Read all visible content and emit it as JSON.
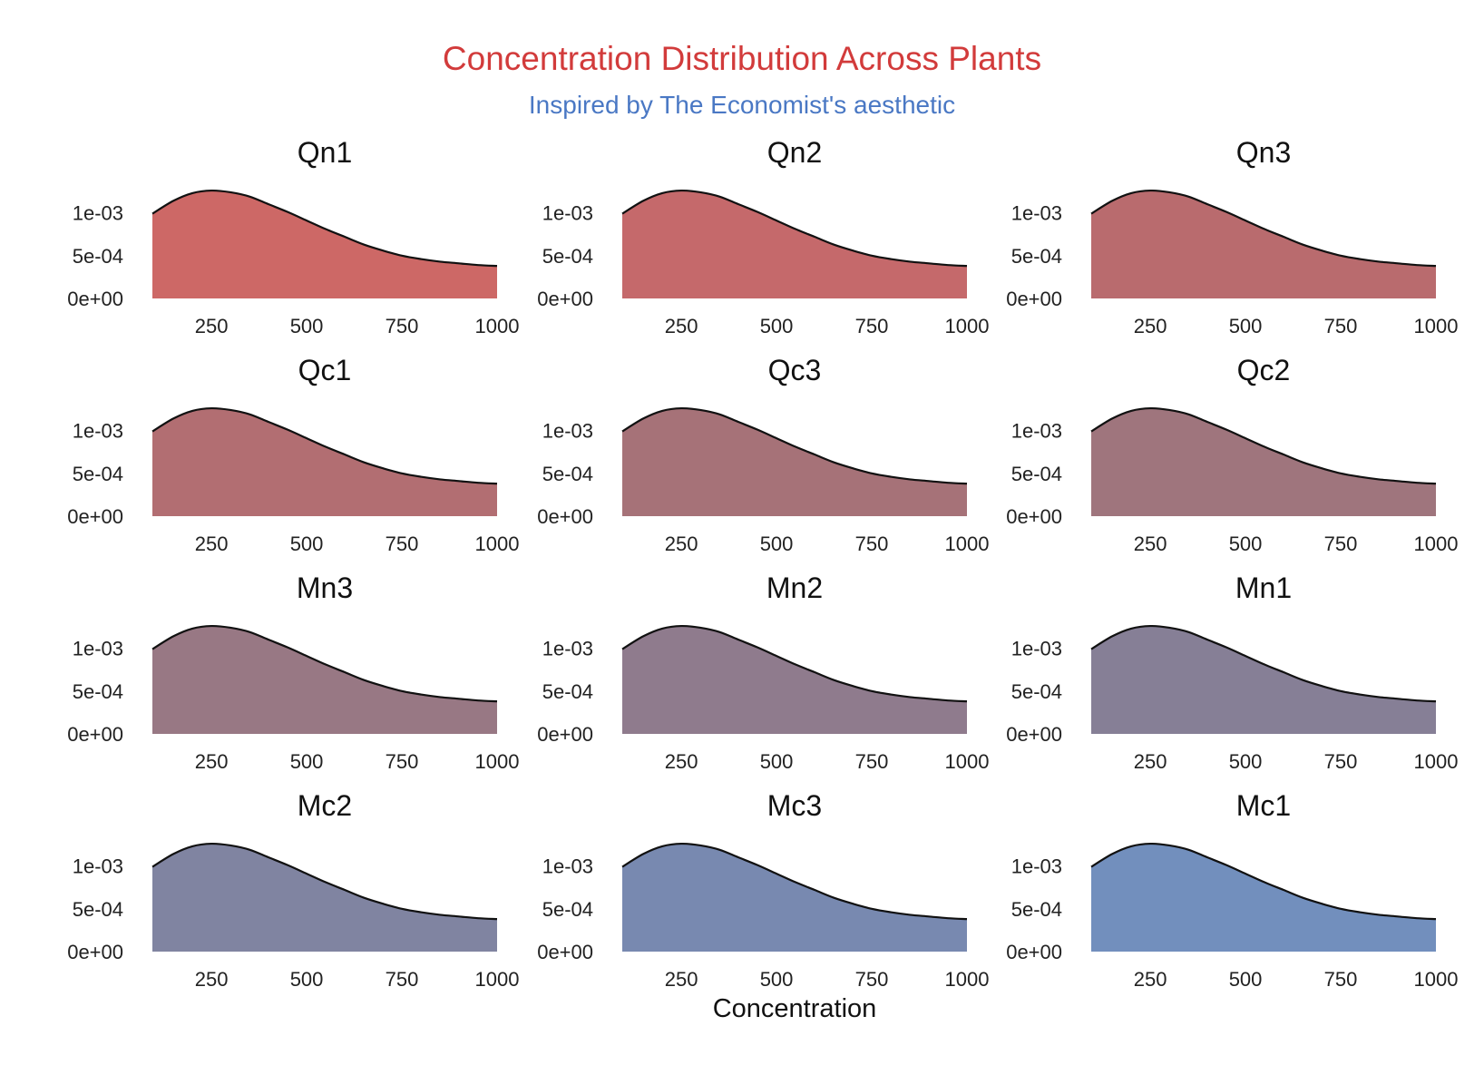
{
  "chart_data": {
    "type": "area",
    "title": "Concentration Distribution Across Plants",
    "subtitle": "Inspired by The Economist's aesthetic",
    "xlabel": "Concentration",
    "ylabel": "",
    "xlim": [
      95,
      1000
    ],
    "ylim": [
      0,
      0.00125
    ],
    "x_ticks": [
      250,
      500,
      750,
      1000
    ],
    "y_ticks": [
      0,
      0.0005,
      0.001
    ],
    "y_tick_labels": [
      "0e+00",
      "5e-04",
      "1e-03"
    ],
    "grid": false,
    "x": [
      95,
      150,
      200,
      250,
      300,
      350,
      400,
      450,
      500,
      550,
      600,
      650,
      700,
      750,
      800,
      850,
      900,
      950,
      1000
    ],
    "panels": [
      {
        "name": "Qn1",
        "color": "#cd6866",
        "values": [
          0.00099,
          0.00114,
          0.00123,
          0.00126,
          0.00124,
          0.00119,
          0.0011,
          0.00101,
          0.00091,
          0.00081,
          0.00072,
          0.00063,
          0.00056,
          0.0005,
          0.00046,
          0.00043,
          0.00041,
          0.00039,
          0.00038
        ]
      },
      {
        "name": "Qn2",
        "color": "#c5696b",
        "values": [
          0.00099,
          0.00114,
          0.00123,
          0.00126,
          0.00124,
          0.00119,
          0.0011,
          0.00101,
          0.00091,
          0.00081,
          0.00072,
          0.00063,
          0.00056,
          0.0005,
          0.00046,
          0.00043,
          0.00041,
          0.00039,
          0.00038
        ]
      },
      {
        "name": "Qn3",
        "color": "#b96b6e",
        "values": [
          0.00099,
          0.00114,
          0.00123,
          0.00126,
          0.00124,
          0.00119,
          0.0011,
          0.00101,
          0.00091,
          0.00081,
          0.00072,
          0.00063,
          0.00056,
          0.0005,
          0.00046,
          0.00043,
          0.00041,
          0.00039,
          0.00038
        ]
      },
      {
        "name": "Qc1",
        "color": "#b26e72",
        "values": [
          0.00099,
          0.00114,
          0.00123,
          0.00126,
          0.00124,
          0.00119,
          0.0011,
          0.00101,
          0.00091,
          0.00081,
          0.00072,
          0.00063,
          0.00056,
          0.0005,
          0.00046,
          0.00043,
          0.00041,
          0.00039,
          0.00038
        ]
      },
      {
        "name": "Qc3",
        "color": "#a67278",
        "values": [
          0.00099,
          0.00114,
          0.00123,
          0.00126,
          0.00124,
          0.00119,
          0.0011,
          0.00101,
          0.00091,
          0.00081,
          0.00072,
          0.00063,
          0.00056,
          0.0005,
          0.00046,
          0.00043,
          0.00041,
          0.00039,
          0.00038
        ]
      },
      {
        "name": "Qc2",
        "color": "#9f757d",
        "values": [
          0.00099,
          0.00114,
          0.00123,
          0.00126,
          0.00124,
          0.00119,
          0.0011,
          0.00101,
          0.00091,
          0.00081,
          0.00072,
          0.00063,
          0.00056,
          0.0005,
          0.00046,
          0.00043,
          0.00041,
          0.00039,
          0.00038
        ]
      },
      {
        "name": "Mn3",
        "color": "#987884",
        "values": [
          0.00099,
          0.00114,
          0.00123,
          0.00126,
          0.00124,
          0.00119,
          0.0011,
          0.00101,
          0.00091,
          0.00081,
          0.00072,
          0.00063,
          0.00056,
          0.0005,
          0.00046,
          0.00043,
          0.00041,
          0.00039,
          0.00038
        ]
      },
      {
        "name": "Mn2",
        "color": "#8f7b8d",
        "values": [
          0.00099,
          0.00114,
          0.00123,
          0.00126,
          0.00124,
          0.00119,
          0.0011,
          0.00101,
          0.00091,
          0.00081,
          0.00072,
          0.00063,
          0.00056,
          0.0005,
          0.00046,
          0.00043,
          0.00041,
          0.00039,
          0.00038
        ]
      },
      {
        "name": "Mn1",
        "color": "#867f96",
        "values": [
          0.00099,
          0.00114,
          0.00123,
          0.00126,
          0.00124,
          0.00119,
          0.0011,
          0.00101,
          0.00091,
          0.00081,
          0.00072,
          0.00063,
          0.00056,
          0.0005,
          0.00046,
          0.00043,
          0.00041,
          0.00039,
          0.00038
        ]
      },
      {
        "name": "Mc2",
        "color": "#8084a1",
        "values": [
          0.00099,
          0.00114,
          0.00123,
          0.00126,
          0.00124,
          0.00119,
          0.0011,
          0.00101,
          0.00091,
          0.00081,
          0.00072,
          0.00063,
          0.00056,
          0.0005,
          0.00046,
          0.00043,
          0.00041,
          0.00039,
          0.00038
        ]
      },
      {
        "name": "Mc3",
        "color": "#7889b0",
        "values": [
          0.00099,
          0.00114,
          0.00123,
          0.00126,
          0.00124,
          0.00119,
          0.0011,
          0.00101,
          0.00091,
          0.00081,
          0.00072,
          0.00063,
          0.00056,
          0.0005,
          0.00046,
          0.00043,
          0.00041,
          0.00039,
          0.00038
        ]
      },
      {
        "name": "Mc1",
        "color": "#728fbd",
        "values": [
          0.00099,
          0.00114,
          0.00123,
          0.00126,
          0.00124,
          0.00119,
          0.0011,
          0.00101,
          0.00091,
          0.00081,
          0.00072,
          0.00063,
          0.00056,
          0.0005,
          0.00046,
          0.00043,
          0.00041,
          0.00039,
          0.00038
        ]
      }
    ]
  }
}
